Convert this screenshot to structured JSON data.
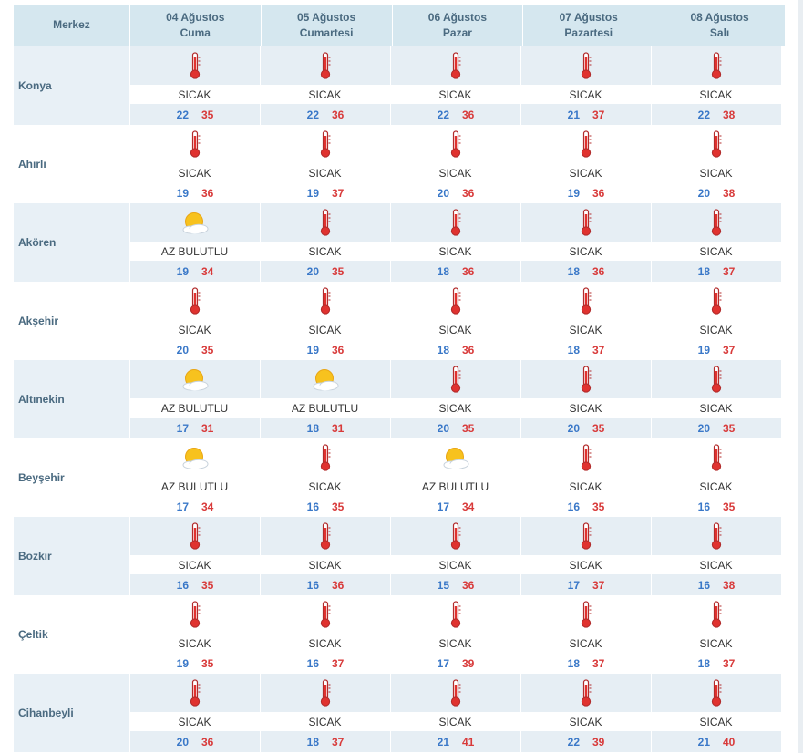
{
  "header": {
    "region_label": "Merkez",
    "days": [
      {
        "date": "04 Ağustos",
        "weekday": "Cuma"
      },
      {
        "date": "05 Ağustos",
        "weekday": "Cumartesi"
      },
      {
        "date": "06 Ağustos",
        "weekday": "Pazar"
      },
      {
        "date": "07 Ağustos",
        "weekday": "Pazartesi"
      },
      {
        "date": "08 Ağustos",
        "weekday": "Salı"
      }
    ]
  },
  "colors": {
    "header_bg": "#d5e7ef",
    "shaded_bg": "#e6eef4",
    "min_temp": "#3a78c8",
    "max_temp": "#d83a3a",
    "label": "#4a6a80"
  },
  "rows": [
    {
      "city": "Konya",
      "days": [
        {
          "icon": "thermometer-icon",
          "cond": "SICAK",
          "min": "22",
          "max": "35"
        },
        {
          "icon": "thermometer-icon",
          "cond": "SICAK",
          "min": "22",
          "max": "36"
        },
        {
          "icon": "thermometer-icon",
          "cond": "SICAK",
          "min": "22",
          "max": "36"
        },
        {
          "icon": "thermometer-icon",
          "cond": "SICAK",
          "min": "21",
          "max": "37"
        },
        {
          "icon": "thermometer-icon",
          "cond": "SICAK",
          "min": "22",
          "max": "38"
        }
      ]
    },
    {
      "city": "Ahırlı",
      "days": [
        {
          "icon": "thermometer-icon",
          "cond": "SICAK",
          "min": "19",
          "max": "36"
        },
        {
          "icon": "thermometer-icon",
          "cond": "SICAK",
          "min": "19",
          "max": "37"
        },
        {
          "icon": "thermometer-icon",
          "cond": "SICAK",
          "min": "20",
          "max": "36"
        },
        {
          "icon": "thermometer-icon",
          "cond": "SICAK",
          "min": "19",
          "max": "36"
        },
        {
          "icon": "thermometer-icon",
          "cond": "SICAK",
          "min": "20",
          "max": "38"
        }
      ]
    },
    {
      "city": "Akören",
      "days": [
        {
          "icon": "partly-cloudy-icon",
          "cond": "AZ BULUTLU",
          "min": "19",
          "max": "34"
        },
        {
          "icon": "thermometer-icon",
          "cond": "SICAK",
          "min": "20",
          "max": "35"
        },
        {
          "icon": "thermometer-icon",
          "cond": "SICAK",
          "min": "18",
          "max": "36"
        },
        {
          "icon": "thermometer-icon",
          "cond": "SICAK",
          "min": "18",
          "max": "36"
        },
        {
          "icon": "thermometer-icon",
          "cond": "SICAK",
          "min": "18",
          "max": "37"
        }
      ]
    },
    {
      "city": "Akşehir",
      "days": [
        {
          "icon": "thermometer-icon",
          "cond": "SICAK",
          "min": "20",
          "max": "35"
        },
        {
          "icon": "thermometer-icon",
          "cond": "SICAK",
          "min": "19",
          "max": "36"
        },
        {
          "icon": "thermometer-icon",
          "cond": "SICAK",
          "min": "18",
          "max": "36"
        },
        {
          "icon": "thermometer-icon",
          "cond": "SICAK",
          "min": "18",
          "max": "37"
        },
        {
          "icon": "thermometer-icon",
          "cond": "SICAK",
          "min": "19",
          "max": "37"
        }
      ]
    },
    {
      "city": "Altınekin",
      "days": [
        {
          "icon": "partly-cloudy-icon",
          "cond": "AZ BULUTLU",
          "min": "17",
          "max": "31"
        },
        {
          "icon": "partly-cloudy-icon",
          "cond": "AZ BULUTLU",
          "min": "18",
          "max": "31"
        },
        {
          "icon": "thermometer-icon",
          "cond": "SICAK",
          "min": "20",
          "max": "35"
        },
        {
          "icon": "thermometer-icon",
          "cond": "SICAK",
          "min": "20",
          "max": "35"
        },
        {
          "icon": "thermometer-icon",
          "cond": "SICAK",
          "min": "20",
          "max": "35"
        }
      ]
    },
    {
      "city": "Beyşehir",
      "days": [
        {
          "icon": "partly-cloudy-icon",
          "cond": "AZ BULUTLU",
          "min": "17",
          "max": "34"
        },
        {
          "icon": "thermometer-icon",
          "cond": "SICAK",
          "min": "16",
          "max": "35"
        },
        {
          "icon": "partly-cloudy-icon",
          "cond": "AZ BULUTLU",
          "min": "17",
          "max": "34"
        },
        {
          "icon": "thermometer-icon",
          "cond": "SICAK",
          "min": "16",
          "max": "35"
        },
        {
          "icon": "thermometer-icon",
          "cond": "SICAK",
          "min": "16",
          "max": "35"
        }
      ]
    },
    {
      "city": "Bozkır",
      "days": [
        {
          "icon": "thermometer-icon",
          "cond": "SICAK",
          "min": "16",
          "max": "35"
        },
        {
          "icon": "thermometer-icon",
          "cond": "SICAK",
          "min": "16",
          "max": "36"
        },
        {
          "icon": "thermometer-icon",
          "cond": "SICAK",
          "min": "15",
          "max": "36"
        },
        {
          "icon": "thermometer-icon",
          "cond": "SICAK",
          "min": "17",
          "max": "37"
        },
        {
          "icon": "thermometer-icon",
          "cond": "SICAK",
          "min": "16",
          "max": "38"
        }
      ]
    },
    {
      "city": "Çeltik",
      "days": [
        {
          "icon": "thermometer-icon",
          "cond": "SICAK",
          "min": "19",
          "max": "35"
        },
        {
          "icon": "thermometer-icon",
          "cond": "SICAK",
          "min": "16",
          "max": "37"
        },
        {
          "icon": "thermometer-icon",
          "cond": "SICAK",
          "min": "17",
          "max": "39"
        },
        {
          "icon": "thermometer-icon",
          "cond": "SICAK",
          "min": "18",
          "max": "37"
        },
        {
          "icon": "thermometer-icon",
          "cond": "SICAK",
          "min": "18",
          "max": "37"
        }
      ]
    },
    {
      "city": "Cihanbeyli",
      "days": [
        {
          "icon": "thermometer-icon",
          "cond": "SICAK",
          "min": "20",
          "max": "36"
        },
        {
          "icon": "thermometer-icon",
          "cond": "SICAK",
          "min": "18",
          "max": "37"
        },
        {
          "icon": "thermometer-icon",
          "cond": "SICAK",
          "min": "21",
          "max": "41"
        },
        {
          "icon": "thermometer-icon",
          "cond": "SICAK",
          "min": "22",
          "max": "39"
        },
        {
          "icon": "thermometer-icon",
          "cond": "SICAK",
          "min": "21",
          "max": "40"
        }
      ]
    }
  ]
}
